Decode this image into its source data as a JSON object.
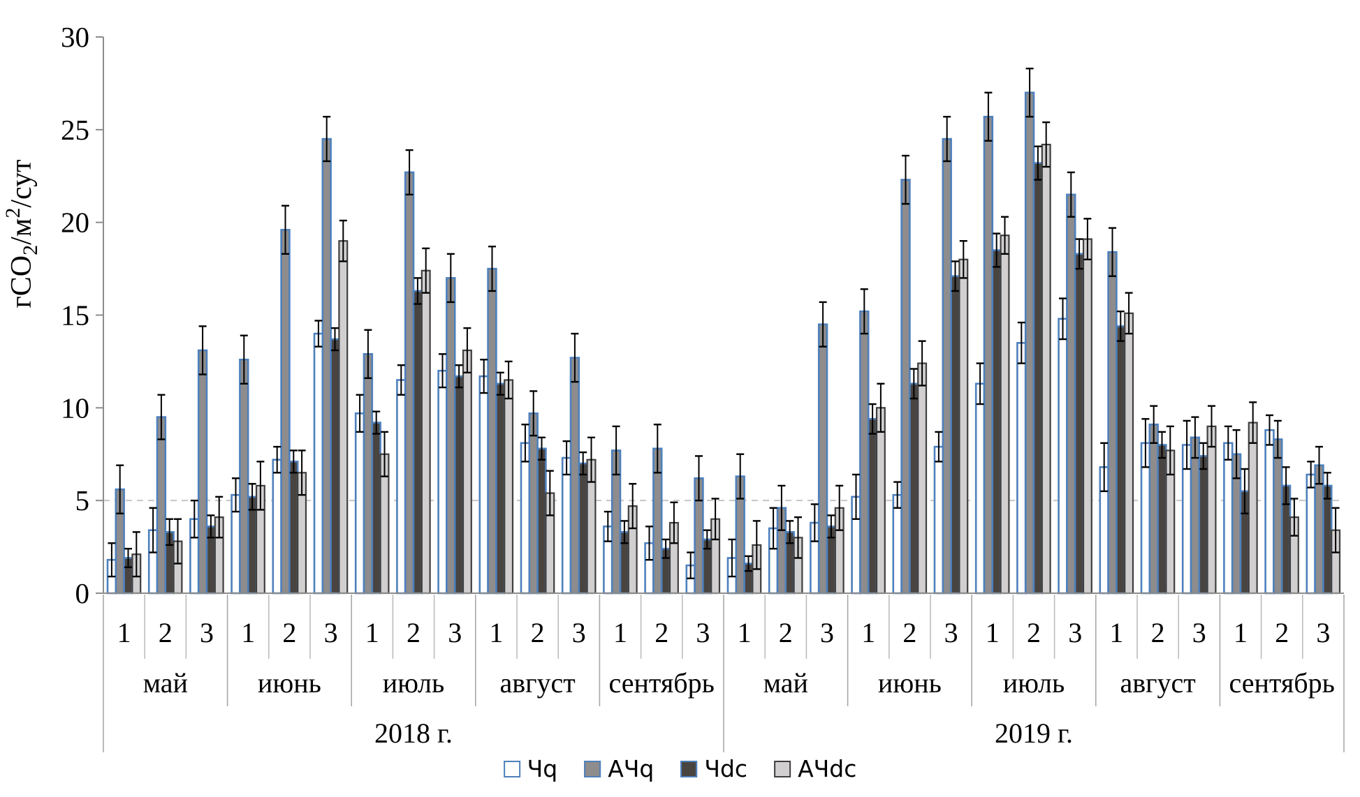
{
  "chart_data": {
    "type": "bar",
    "title": "",
    "xlabel": "",
    "ylabel": "гСО2/м2/сут",
    "ylabel_rich": [
      {
        "text": "гСО",
        "script": "normal"
      },
      {
        "text": "2",
        "script": "sub"
      },
      {
        "text": "/м",
        "script": "normal"
      },
      {
        "text": "2",
        "script": "sup"
      },
      {
        "text": "/сут",
        "script": "normal"
      }
    ],
    "ylim": [
      0,
      30
    ],
    "yticks": [
      0,
      5,
      10,
      15,
      20,
      25,
      30
    ],
    "gridlines_dashed_at": [
      5
    ],
    "legend_position": "bottom-center",
    "decade_axis_note": "each month split into decades 1,2,3",
    "series": [
      {
        "name": "Чq",
        "key": "chq",
        "fill": "#ffffff",
        "stroke": "#4e80bc"
      },
      {
        "name": "АЧq",
        "key": "achq",
        "fill": "#8e8c8c",
        "stroke": "#4e80bc"
      },
      {
        "name": "Чdc",
        "key": "chdc",
        "fill": "#494440",
        "stroke": "#4e80bc"
      },
      {
        "name": "АЧdc",
        "key": "achdc",
        "fill": "#d1cfcf",
        "stroke": "#3f3f3f"
      }
    ],
    "years": [
      {
        "label": "2018 г.",
        "months": [
          {
            "label": "май",
            "decades": [
              {
                "decade": "1",
                "values": [
                  1.8,
                  5.6,
                  1.9,
                  2.1
                ],
                "errors": [
                  0.9,
                  1.3,
                  0.5,
                  1.2
                ]
              },
              {
                "decade": "2",
                "values": [
                  3.4,
                  9.5,
                  3.3,
                  2.8
                ],
                "errors": [
                  1.2,
                  1.2,
                  0.7,
                  1.2
                ]
              },
              {
                "decade": "3",
                "values": [
                  4.0,
                  13.1,
                  3.6,
                  4.1
                ],
                "errors": [
                  1.0,
                  1.3,
                  0.6,
                  1.1
                ]
              }
            ]
          },
          {
            "label": "июнь",
            "decades": [
              {
                "decade": "1",
                "values": [
                  5.3,
                  12.6,
                  5.2,
                  5.8
                ],
                "errors": [
                  0.9,
                  1.3,
                  0.7,
                  1.3
                ]
              },
              {
                "decade": "2",
                "values": [
                  7.2,
                  19.6,
                  7.1,
                  6.5
                ],
                "errors": [
                  0.7,
                  1.3,
                  0.6,
                  1.2
                ]
              },
              {
                "decade": "3",
                "values": [
                  14.0,
                  24.5,
                  13.7,
                  19.0
                ],
                "errors": [
                  0.7,
                  1.2,
                  0.6,
                  1.1
                ]
              }
            ]
          },
          {
            "label": "июль",
            "decades": [
              {
                "decade": "1",
                "values": [
                  9.7,
                  12.9,
                  9.2,
                  7.5
                ],
                "errors": [
                  1.0,
                  1.3,
                  0.6,
                  1.2
                ]
              },
              {
                "decade": "2",
                "values": [
                  11.5,
                  22.7,
                  16.3,
                  17.4
                ],
                "errors": [
                  0.8,
                  1.2,
                  0.7,
                  1.2
                ]
              },
              {
                "decade": "3",
                "values": [
                  12.0,
                  17.0,
                  11.7,
                  13.1
                ],
                "errors": [
                  0.9,
                  1.3,
                  0.6,
                  1.2
                ]
              }
            ]
          },
          {
            "label": "август",
            "decades": [
              {
                "decade": "1",
                "values": [
                  11.7,
                  17.5,
                  11.3,
                  11.5
                ],
                "errors": [
                  0.9,
                  1.2,
                  0.6,
                  1.0
                ]
              },
              {
                "decade": "2",
                "values": [
                  8.1,
                  9.7,
                  7.8,
                  5.4
                ],
                "errors": [
                  1.0,
                  1.2,
                  0.6,
                  1.2
                ]
              },
              {
                "decade": "3",
                "values": [
                  7.3,
                  12.7,
                  7.0,
                  7.2
                ],
                "errors": [
                  0.9,
                  1.3,
                  0.6,
                  1.2
                ]
              }
            ]
          },
          {
            "label": "сентябрь",
            "decades": [
              {
                "decade": "1",
                "values": [
                  3.6,
                  7.7,
                  3.3,
                  4.7
                ],
                "errors": [
                  0.8,
                  1.3,
                  0.6,
                  1.2
                ]
              },
              {
                "decade": "2",
                "values": [
                  2.7,
                  7.8,
                  2.4,
                  3.8
                ],
                "errors": [
                  0.9,
                  1.3,
                  0.5,
                  1.1
                ]
              },
              {
                "decade": "3",
                "values": [
                  1.5,
                  6.2,
                  2.9,
                  4.0
                ],
                "errors": [
                  0.7,
                  1.2,
                  0.5,
                  1.1
                ]
              }
            ]
          }
        ]
      },
      {
        "label": "2019 г.",
        "months": [
          {
            "label": "май",
            "decades": [
              {
                "decade": "1",
                "values": [
                  1.9,
                  6.3,
                  1.6,
                  2.6
                ],
                "errors": [
                  1.0,
                  1.2,
                  0.4,
                  1.3
                ]
              },
              {
                "decade": "2",
                "values": [
                  3.5,
                  4.6,
                  3.3,
                  3.0
                ],
                "errors": [
                  1.1,
                  1.2,
                  0.6,
                  1.1
                ]
              },
              {
                "decade": "3",
                "values": [
                  3.8,
                  14.5,
                  3.6,
                  4.6
                ],
                "errors": [
                  1.0,
                  1.2,
                  0.6,
                  1.2
                ]
              }
            ]
          },
          {
            "label": "июнь",
            "decades": [
              {
                "decade": "1",
                "values": [
                  5.2,
                  15.2,
                  9.4,
                  10.0
                ],
                "errors": [
                  1.2,
                  1.2,
                  0.8,
                  1.3
                ]
              },
              {
                "decade": "2",
                "values": [
                  5.3,
                  22.3,
                  11.3,
                  12.4
                ],
                "errors": [
                  0.7,
                  1.3,
                  0.8,
                  1.2
                ]
              },
              {
                "decade": "3",
                "values": [
                  7.9,
                  24.5,
                  17.1,
                  18.0
                ],
                "errors": [
                  0.8,
                  1.2,
                  0.8,
                  1.0
                ]
              }
            ]
          },
          {
            "label": "июль",
            "decades": [
              {
                "decade": "1",
                "values": [
                  11.3,
                  25.7,
                  18.5,
                  19.3
                ],
                "errors": [
                  1.1,
                  1.3,
                  0.9,
                  1.0
                ]
              },
              {
                "decade": "2",
                "values": [
                  13.5,
                  27.0,
                  23.2,
                  24.2
                ],
                "errors": [
                  1.1,
                  1.3,
                  0.9,
                  1.2
                ]
              },
              {
                "decade": "3",
                "values": [
                  14.8,
                  21.5,
                  18.3,
                  19.1
                ],
                "errors": [
                  1.1,
                  1.2,
                  0.8,
                  1.1
                ]
              }
            ]
          },
          {
            "label": "август",
            "decades": [
              {
                "decade": "1",
                "values": [
                  6.8,
                  18.4,
                  14.4,
                  15.1
                ],
                "errors": [
                  1.3,
                  1.3,
                  0.8,
                  1.1
                ]
              },
              {
                "decade": "2",
                "values": [
                  8.1,
                  9.1,
                  8.0,
                  7.7
                ],
                "errors": [
                  1.3,
                  1.0,
                  0.7,
                  1.3
                ]
              },
              {
                "decade": "3",
                "values": [
                  8.0,
                  8.4,
                  7.4,
                  9.0
                ],
                "errors": [
                  1.3,
                  1.1,
                  0.7,
                  1.1
                ]
              }
            ]
          },
          {
            "label": "сентябрь",
            "decades": [
              {
                "decade": "1",
                "values": [
                  8.1,
                  7.5,
                  5.5,
                  9.2
                ],
                "errors": [
                  0.9,
                  1.3,
                  1.2,
                  1.1
                ]
              },
              {
                "decade": "2",
                "values": [
                  8.8,
                  8.3,
                  5.8,
                  4.1
                ],
                "errors": [
                  0.8,
                  1.0,
                  1.0,
                  1.0
                ]
              },
              {
                "decade": "3",
                "values": [
                  6.4,
                  6.9,
                  5.8,
                  3.4
                ],
                "errors": [
                  0.7,
                  1.0,
                  0.7,
                  1.2
                ]
              }
            ]
          }
        ]
      }
    ],
    "colors": {
      "bar_border_blue": "#4e80bc",
      "bar_border_dark": "#3f3f3f",
      "axis": "#8c8c8c",
      "divider": "#a8a8a8",
      "divider_light": "#bdbdbd",
      "gridline": "#c6c6c6",
      "error_bar": "#000000",
      "text": "#000000"
    }
  }
}
